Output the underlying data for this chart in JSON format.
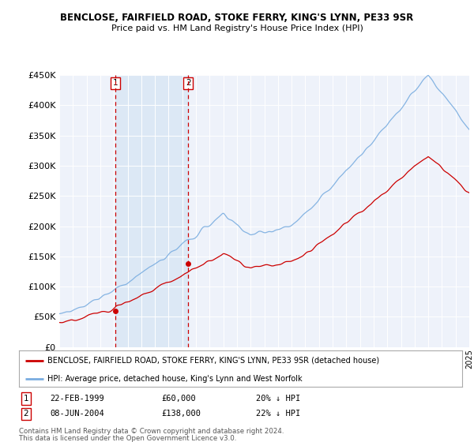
{
  "title": "BENCLOSE, FAIRFIELD ROAD, STOKE FERRY, KING'S LYNN, PE33 9SR",
  "subtitle": "Price paid vs. HM Land Registry's House Price Index (HPI)",
  "legend_red": "BENCLOSE, FAIRFIELD ROAD, STOKE FERRY, KING'S LYNN, PE33 9SR (detached house)",
  "legend_blue": "HPI: Average price, detached house, King's Lynn and West Norfolk",
  "sale1_label": "1",
  "sale1_date": "22-FEB-1999",
  "sale1_price": "£60,000",
  "sale1_hpi": "20% ↓ HPI",
  "sale1_year": 1999.12,
  "sale1_value": 60000,
  "sale2_label": "2",
  "sale2_date": "08-JUN-2004",
  "sale2_price": "£138,000",
  "sale2_hpi": "22% ↓ HPI",
  "sale2_year": 2004.44,
  "sale2_value": 138000,
  "footer1": "Contains HM Land Registry data © Crown copyright and database right 2024.",
  "footer2": "This data is licensed under the Open Government Licence v3.0.",
  "ylim": [
    0,
    450000
  ],
  "yticks": [
    0,
    50000,
    100000,
    150000,
    200000,
    250000,
    300000,
    350000,
    400000,
    450000
  ],
  "color_red": "#cc0000",
  "color_blue": "#7aade0",
  "color_shade": "#dce8f5",
  "color_dashed": "#cc0000",
  "background_plot": "#eef2fa",
  "background_fig": "#ffffff",
  "xstart": 1995,
  "xend": 2025
}
